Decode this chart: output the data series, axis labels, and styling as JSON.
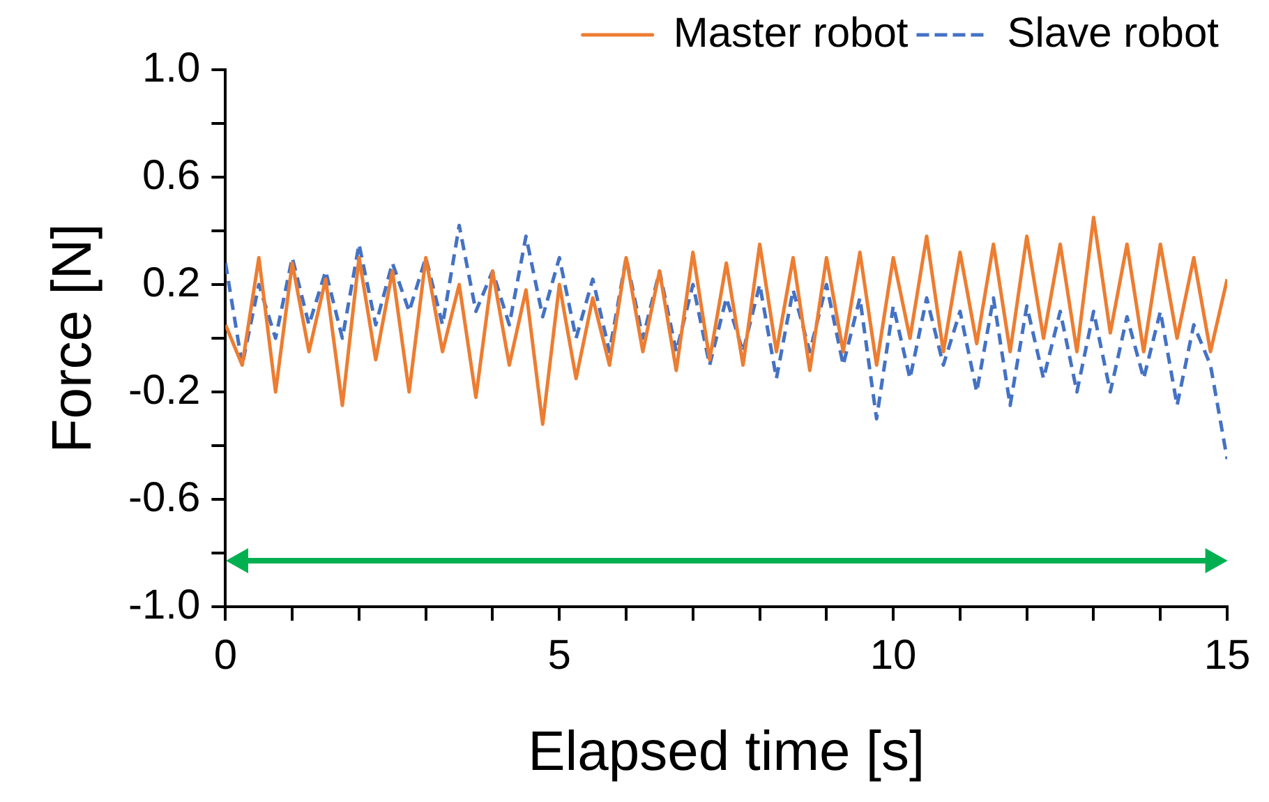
{
  "chart_data": {
    "type": "line",
    "xlabel": "Elapsed time [s]",
    "ylabel": "Force [N]",
    "x": [
      0,
      0.25,
      0.5,
      0.75,
      1,
      1.25,
      1.5,
      1.75,
      2,
      2.25,
      2.5,
      2.75,
      3,
      3.25,
      3.5,
      3.75,
      4,
      4.25,
      4.5,
      4.75,
      5,
      5.25,
      5.5,
      5.75,
      6,
      6.25,
      6.5,
      6.75,
      7,
      7.25,
      7.5,
      7.75,
      8,
      8.25,
      8.5,
      8.75,
      9,
      9.25,
      9.5,
      9.75,
      10,
      10.25,
      10.5,
      10.75,
      11,
      11.25,
      11.5,
      11.75,
      12,
      12.25,
      12.5,
      12.75,
      13,
      13.25,
      13.5,
      13.75,
      14,
      14.25,
      14.5,
      14.75,
      15
    ],
    "series": [
      {
        "name": "Master robot",
        "color": "#ed7d31",
        "line_style": "solid",
        "values": [
          0.05,
          -0.1,
          0.3,
          -0.2,
          0.28,
          -0.05,
          0.22,
          -0.25,
          0.3,
          -0.08,
          0.25,
          -0.2,
          0.3,
          -0.05,
          0.2,
          -0.22,
          0.25,
          -0.1,
          0.18,
          -0.32,
          0.2,
          -0.15,
          0.15,
          -0.1,
          0.3,
          -0.05,
          0.25,
          -0.12,
          0.32,
          -0.08,
          0.28,
          -0.1,
          0.35,
          -0.05,
          0.3,
          -0.12,
          0.3,
          -0.05,
          0.32,
          -0.1,
          0.3,
          0.0,
          0.38,
          -0.05,
          0.32,
          -0.02,
          0.35,
          -0.05,
          0.38,
          0.0,
          0.35,
          -0.05,
          0.45,
          0.02,
          0.35,
          -0.05,
          0.35,
          0.0,
          0.3,
          -0.05,
          0.22
        ]
      },
      {
        "name": "Slave robot",
        "color": "#4472c4",
        "line_style": "dashed",
        "values": [
          0.28,
          -0.1,
          0.2,
          0.0,
          0.3,
          0.05,
          0.25,
          0.0,
          0.35,
          0.05,
          0.28,
          0.1,
          0.3,
          0.05,
          0.42,
          0.1,
          0.25,
          0.05,
          0.38,
          0.08,
          0.3,
          0.0,
          0.22,
          -0.05,
          0.3,
          0.0,
          0.25,
          -0.05,
          0.2,
          -0.1,
          0.15,
          -0.05,
          0.2,
          -0.15,
          0.18,
          -0.05,
          0.2,
          -0.1,
          0.15,
          -0.3,
          0.12,
          -0.15,
          0.15,
          -0.1,
          0.1,
          -0.2,
          0.15,
          -0.25,
          0.12,
          -0.15,
          0.1,
          -0.2,
          0.1,
          -0.2,
          0.08,
          -0.15,
          0.1,
          -0.25,
          0.05,
          -0.1,
          -0.45
        ]
      }
    ],
    "xlim": [
      0,
      15
    ],
    "xticks": [
      0,
      {
        "value": 1,
        "label": null
      },
      {
        "value": 2,
        "label": null
      },
      {
        "value": 3,
        "label": null
      },
      {
        "value": 4,
        "label": null
      },
      5,
      {
        "value": 6,
        "label": null
      },
      {
        "value": 7,
        "label": null
      },
      {
        "value": 8,
        "label": null
      },
      {
        "value": 9,
        "label": null
      },
      10,
      {
        "value": 11,
        "label": null
      },
      {
        "value": 12,
        "label": null
      },
      {
        "value": 13,
        "label": null
      },
      {
        "value": 14,
        "label": null
      },
      15
    ],
    "ylim": [
      -1,
      1
    ],
    "yticks": [
      {
        "value": -1,
        "label": "-1.0"
      },
      {
        "value": -0.8,
        "label": null
      },
      {
        "value": -0.6,
        "label": "-0.6"
      },
      {
        "value": -0.4,
        "label": null
      },
      {
        "value": -0.2,
        "label": "-0.2"
      },
      {
        "value": 0,
        "label": null
      },
      {
        "value": 0.2,
        "label": "0.2"
      },
      {
        "value": 0.4,
        "label": null
      },
      {
        "value": 0.6,
        "label": "0.6"
      },
      {
        "value": 0.8,
        "label": null
      },
      {
        "value": 1,
        "label": "1.0"
      }
    ],
    "grid": false,
    "legend": "top right",
    "marker": "none"
  }
}
